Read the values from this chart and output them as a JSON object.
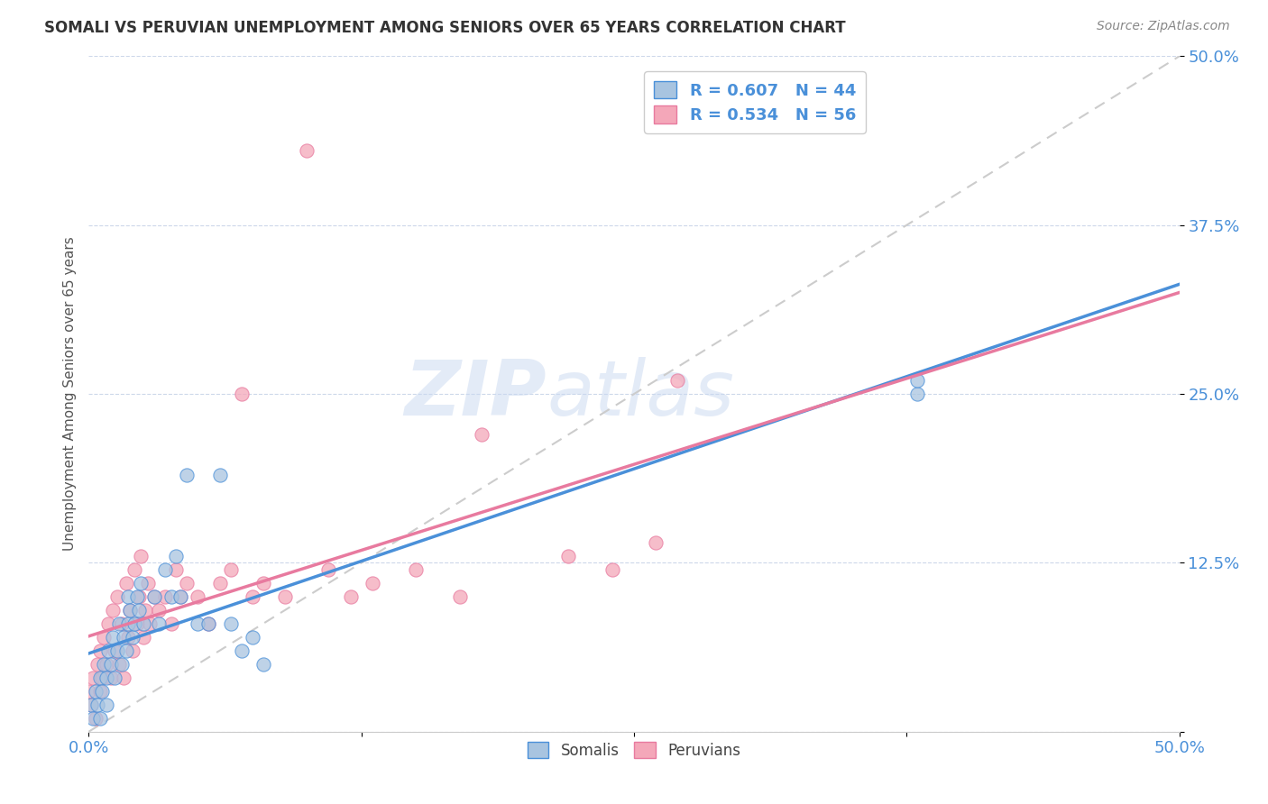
{
  "title": "SOMALI VS PERUVIAN UNEMPLOYMENT AMONG SENIORS OVER 65 YEARS CORRELATION CHART",
  "source": "Source: ZipAtlas.com",
  "ylabel": "Unemployment Among Seniors over 65 years",
  "xlim": [
    0.0,
    0.5
  ],
  "ylim": [
    0.0,
    0.5
  ],
  "xticks": [
    0.0,
    0.125,
    0.25,
    0.375,
    0.5
  ],
  "yticks": [
    0.0,
    0.125,
    0.25,
    0.375,
    0.5
  ],
  "xticklabels": [
    "0.0%",
    "",
    "",
    "",
    "50.0%"
  ],
  "yticklabels": [
    "",
    "12.5%",
    "25.0%",
    "37.5%",
    "50.0%"
  ],
  "somali_color": "#a8c4e0",
  "peruvian_color": "#f4a7b9",
  "somali_line_color": "#4a90d9",
  "peruvian_line_color": "#e87a9f",
  "diagonal_color": "#cccccc",
  "legend_text_color": "#4a90d9",
  "watermark_zip": "ZIP",
  "watermark_atlas": "atlas",
  "R_somali": 0.607,
  "N_somali": 44,
  "R_peruvian": 0.534,
  "N_peruvian": 56,
  "somali_x": [
    0.001,
    0.002,
    0.003,
    0.004,
    0.005,
    0.005,
    0.006,
    0.007,
    0.008,
    0.008,
    0.009,
    0.01,
    0.011,
    0.012,
    0.013,
    0.014,
    0.015,
    0.016,
    0.017,
    0.018,
    0.018,
    0.019,
    0.02,
    0.021,
    0.022,
    0.023,
    0.024,
    0.025,
    0.03,
    0.032,
    0.035,
    0.038,
    0.04,
    0.042,
    0.045,
    0.05,
    0.055,
    0.06,
    0.065,
    0.07,
    0.075,
    0.08,
    0.38,
    0.38
  ],
  "somali_y": [
    0.02,
    0.01,
    0.03,
    0.02,
    0.04,
    0.01,
    0.03,
    0.05,
    0.04,
    0.02,
    0.06,
    0.05,
    0.07,
    0.04,
    0.06,
    0.08,
    0.05,
    0.07,
    0.06,
    0.08,
    0.1,
    0.09,
    0.07,
    0.08,
    0.1,
    0.09,
    0.11,
    0.08,
    0.1,
    0.08,
    0.12,
    0.1,
    0.13,
    0.1,
    0.19,
    0.08,
    0.08,
    0.19,
    0.08,
    0.06,
    0.07,
    0.05,
    0.25,
    0.26
  ],
  "peruvian_x": [
    0.0,
    0.001,
    0.002,
    0.003,
    0.004,
    0.005,
    0.005,
    0.006,
    0.007,
    0.008,
    0.009,
    0.01,
    0.011,
    0.012,
    0.013,
    0.014,
    0.015,
    0.016,
    0.017,
    0.018,
    0.019,
    0.02,
    0.021,
    0.022,
    0.023,
    0.024,
    0.025,
    0.026,
    0.027,
    0.028,
    0.03,
    0.032,
    0.035,
    0.038,
    0.04,
    0.042,
    0.045,
    0.05,
    0.055,
    0.06,
    0.065,
    0.07,
    0.075,
    0.08,
    0.09,
    0.1,
    0.11,
    0.12,
    0.13,
    0.15,
    0.17,
    0.18,
    0.22,
    0.24,
    0.26,
    0.27
  ],
  "peruvian_y": [
    0.03,
    0.02,
    0.04,
    0.01,
    0.05,
    0.03,
    0.06,
    0.04,
    0.07,
    0.05,
    0.08,
    0.04,
    0.09,
    0.06,
    0.1,
    0.05,
    0.08,
    0.04,
    0.11,
    0.07,
    0.09,
    0.06,
    0.12,
    0.08,
    0.1,
    0.13,
    0.07,
    0.09,
    0.11,
    0.08,
    0.1,
    0.09,
    0.1,
    0.08,
    0.12,
    0.1,
    0.11,
    0.1,
    0.08,
    0.11,
    0.12,
    0.25,
    0.1,
    0.11,
    0.1,
    0.43,
    0.12,
    0.1,
    0.11,
    0.12,
    0.1,
    0.22,
    0.13,
    0.12,
    0.14,
    0.26
  ]
}
